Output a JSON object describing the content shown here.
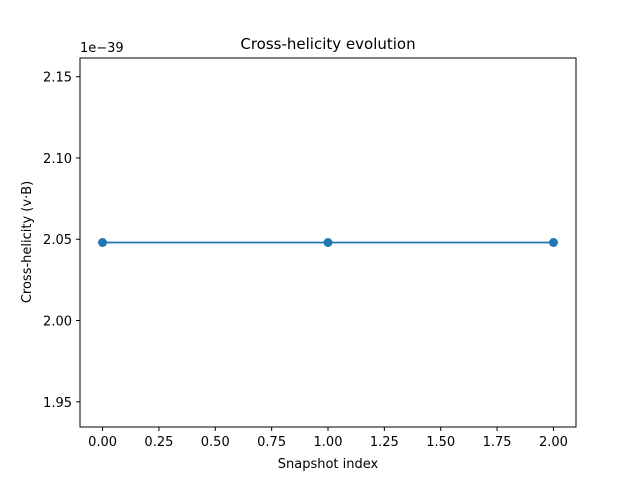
{
  "chart_data": {
    "type": "line",
    "title": "Cross-helicity evolution",
    "xlabel": "Snapshot index",
    "ylabel": "Cross-helicity (v·B)",
    "offset_label": "1e−39",
    "x": [
      0,
      1,
      2
    ],
    "series": [
      {
        "values": [
          2.048,
          2.048,
          2.048
        ],
        "color": "#1f77b4",
        "marker": "circle"
      }
    ],
    "xlim": [
      -0.1,
      2.1
    ],
    "ylim": [
      1.9345,
      2.1615
    ],
    "xticks": [
      0.0,
      0.25,
      0.5,
      0.75,
      1.0,
      1.25,
      1.5,
      1.75,
      2.0
    ],
    "xtick_labels": [
      "0.00",
      "0.25",
      "0.50",
      "0.75",
      "1.00",
      "1.25",
      "1.50",
      "1.75",
      "2.00"
    ],
    "yticks": [
      1.95,
      2.0,
      2.05,
      2.1,
      2.15
    ],
    "ytick_labels": [
      "1.95",
      "2.00",
      "2.05",
      "2.10",
      "2.15"
    ],
    "grid": false,
    "legend": "none"
  }
}
